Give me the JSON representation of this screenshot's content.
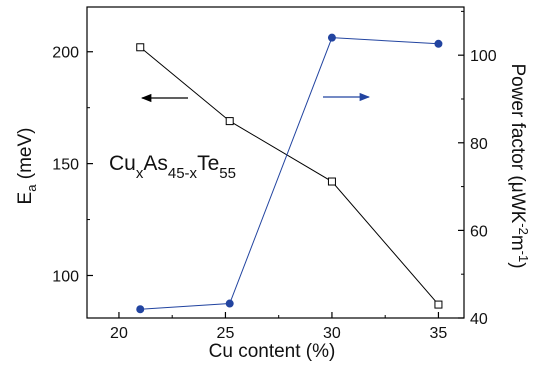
{
  "chart_data": {
    "type": "line",
    "x_label": "Cu content  (%)",
    "x_ticks": [
      20,
      25,
      30,
      35
    ],
    "x_range": [
      18.5,
      36.2
    ],
    "y_left": {
      "label_main": "E",
      "label_sub": "a",
      "label_unit": " (meV)",
      "ticks": [
        100,
        150,
        200
      ],
      "range": [
        81,
        220
      ]
    },
    "y_right": {
      "label_parts": [
        "Power factor (μWK",
        "-2",
        "m",
        "-1",
        ")"
      ],
      "ticks": [
        40,
        60,
        80,
        100
      ],
      "range": [
        40,
        111
      ]
    },
    "series": [
      {
        "axis": "left",
        "marker": "open-square",
        "color": "#000000",
        "x": [
          21,
          25.2,
          30,
          35
        ],
        "y": [
          202,
          169,
          142,
          87
        ]
      },
      {
        "axis": "right",
        "marker": "filled-circle",
        "color": "#2244a0",
        "x": [
          21,
          25.2,
          30,
          35
        ],
        "y": [
          42,
          43.3,
          104,
          102.6
        ]
      }
    ],
    "annotation": {
      "base1": "Cu",
      "sub1": "x",
      "base2": "As",
      "sub2": "45-x",
      "base3": "Te",
      "sub3": "55"
    },
    "arrows": [
      {
        "direction": "left",
        "color": "#000000"
      },
      {
        "direction": "right",
        "color": "#2244a0"
      }
    ]
  }
}
